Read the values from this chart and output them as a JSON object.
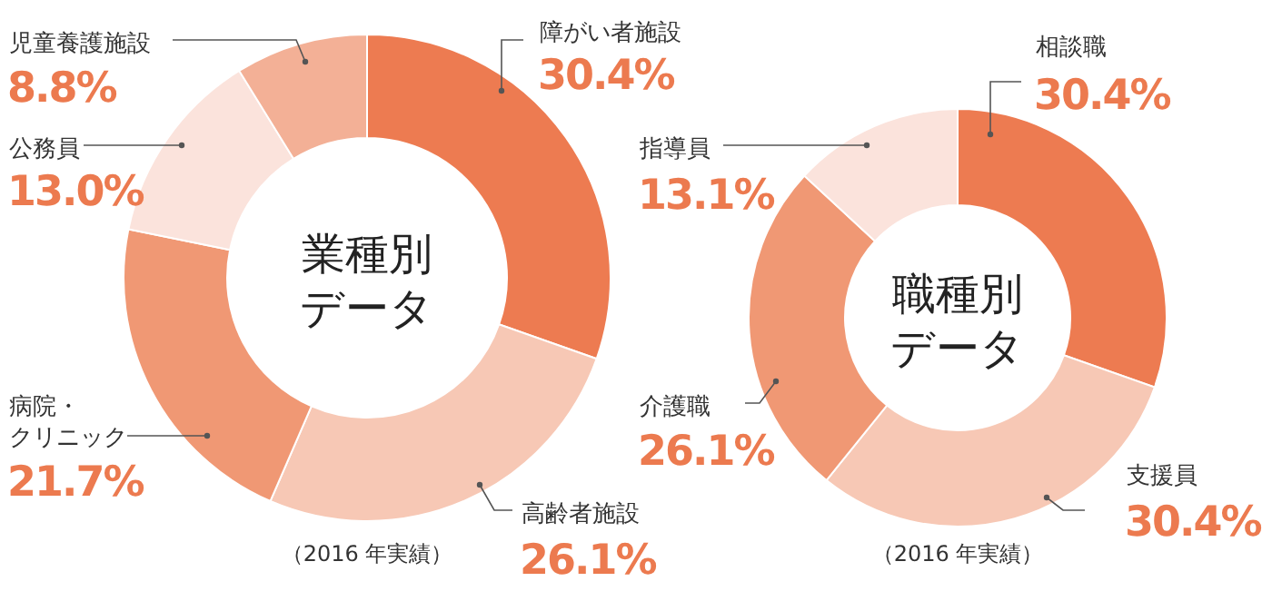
{
  "chart_data": [
    {
      "type": "donut",
      "title": "業種別データ",
      "categories": [
        "障がい者施設",
        "高齢者施設",
        "病院・クリニック",
        "公務員",
        "児童養護施設"
      ],
      "values": [
        30.4,
        26.1,
        21.7,
        13.0,
        8.8
      ],
      "colors": [
        "#ed7b51",
        "#f7c8b5",
        "#f09874",
        "#fbe3dc",
        "#f3b096"
      ],
      "value_labels": [
        "30.4%",
        "26.1%",
        "21.7%",
        "13.0%",
        "8.8%"
      ],
      "annotations": [
        "（2016 年実績）"
      ]
    },
    {
      "type": "donut",
      "title": "職種別データ",
      "categories": [
        "相談職",
        "支援員",
        "介護職",
        "指導員"
      ],
      "values": [
        30.4,
        30.4,
        26.1,
        13.1
      ],
      "colors": [
        "#ed7b51",
        "#f7c8b5",
        "#f09874",
        "#fbe3dc"
      ],
      "value_labels": [
        "30.4%",
        "30.4%",
        "26.1%",
        "13.1%"
      ],
      "annotations": [
        "（2016 年実績）"
      ]
    }
  ]
}
